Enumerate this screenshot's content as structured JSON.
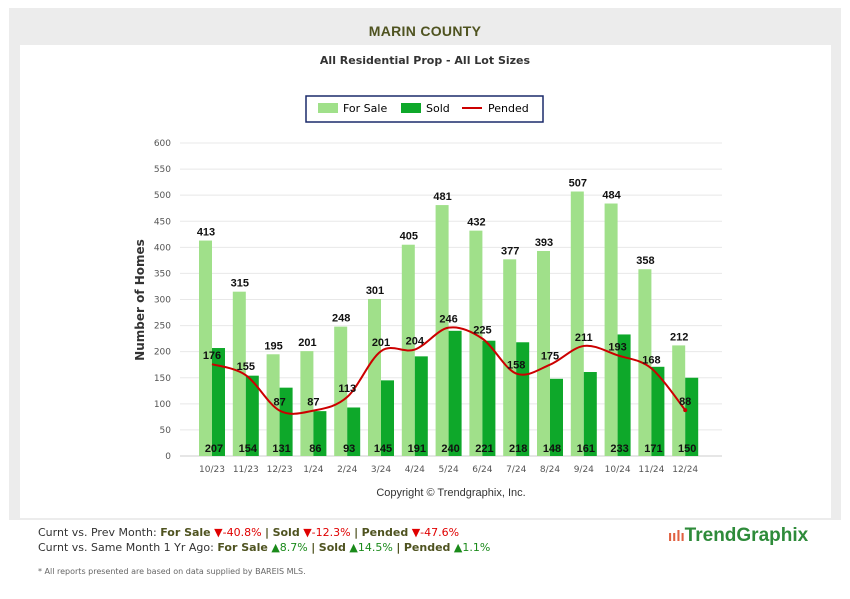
{
  "header": {
    "title": "MARIN COUNTY"
  },
  "chart_data": {
    "type": "bar",
    "title": "All Residential Prop - All Lot Sizes",
    "ylabel": "Number of Homes",
    "xlabel": "",
    "ylim": [
      0,
      600
    ],
    "yticks": [
      0,
      50,
      100,
      150,
      200,
      250,
      300,
      350,
      400,
      450,
      500,
      550,
      600
    ],
    "grid": true,
    "legend_position": "top",
    "categories": [
      "10/23",
      "11/23",
      "12/23",
      "1/24",
      "2/24",
      "3/24",
      "4/24",
      "5/24",
      "6/24",
      "7/24",
      "8/24",
      "9/24",
      "10/24",
      "11/24",
      "12/24"
    ],
    "series": [
      {
        "name": "For Sale",
        "type": "bar",
        "color": "#a0e08a",
        "values": [
          413,
          315,
          195,
          201,
          248,
          301,
          405,
          481,
          432,
          377,
          393,
          507,
          484,
          358,
          212
        ]
      },
      {
        "name": "Sold",
        "type": "bar",
        "color": "#0ea82a",
        "values": [
          207,
          154,
          131,
          86,
          93,
          145,
          191,
          240,
          221,
          218,
          148,
          161,
          233,
          171,
          150
        ]
      },
      {
        "name": "Pended",
        "type": "line",
        "color": "#cc0000",
        "values": [
          176,
          155,
          87,
          87,
          113,
          201,
          204,
          246,
          225,
          158,
          175,
          211,
          193,
          168,
          88
        ]
      }
    ],
    "copyright": "Copyright © Trendgraphix, Inc."
  },
  "stats": {
    "prev_label": "Curnt vs. Prev Month:",
    "yr_label": "Curnt vs. Same Month 1 Yr Ago:",
    "for_sale": "For Sale",
    "sold": "Sold",
    "pended": "Pended",
    "sep": "|",
    "prev": {
      "for_sale": "-40.8%",
      "sold": "-12.3%",
      "pended": "-47.6%"
    },
    "yr": {
      "for_sale": "8.7%",
      "sold": "14.5%",
      "pended": "1.1%"
    },
    "down_color": "#e00000",
    "up_color": "#1a8a1a"
  },
  "footnote": "* All reports presented are based on data supplied by BAREIS MLS.",
  "logo": {
    "text": "TrendGraphix"
  }
}
